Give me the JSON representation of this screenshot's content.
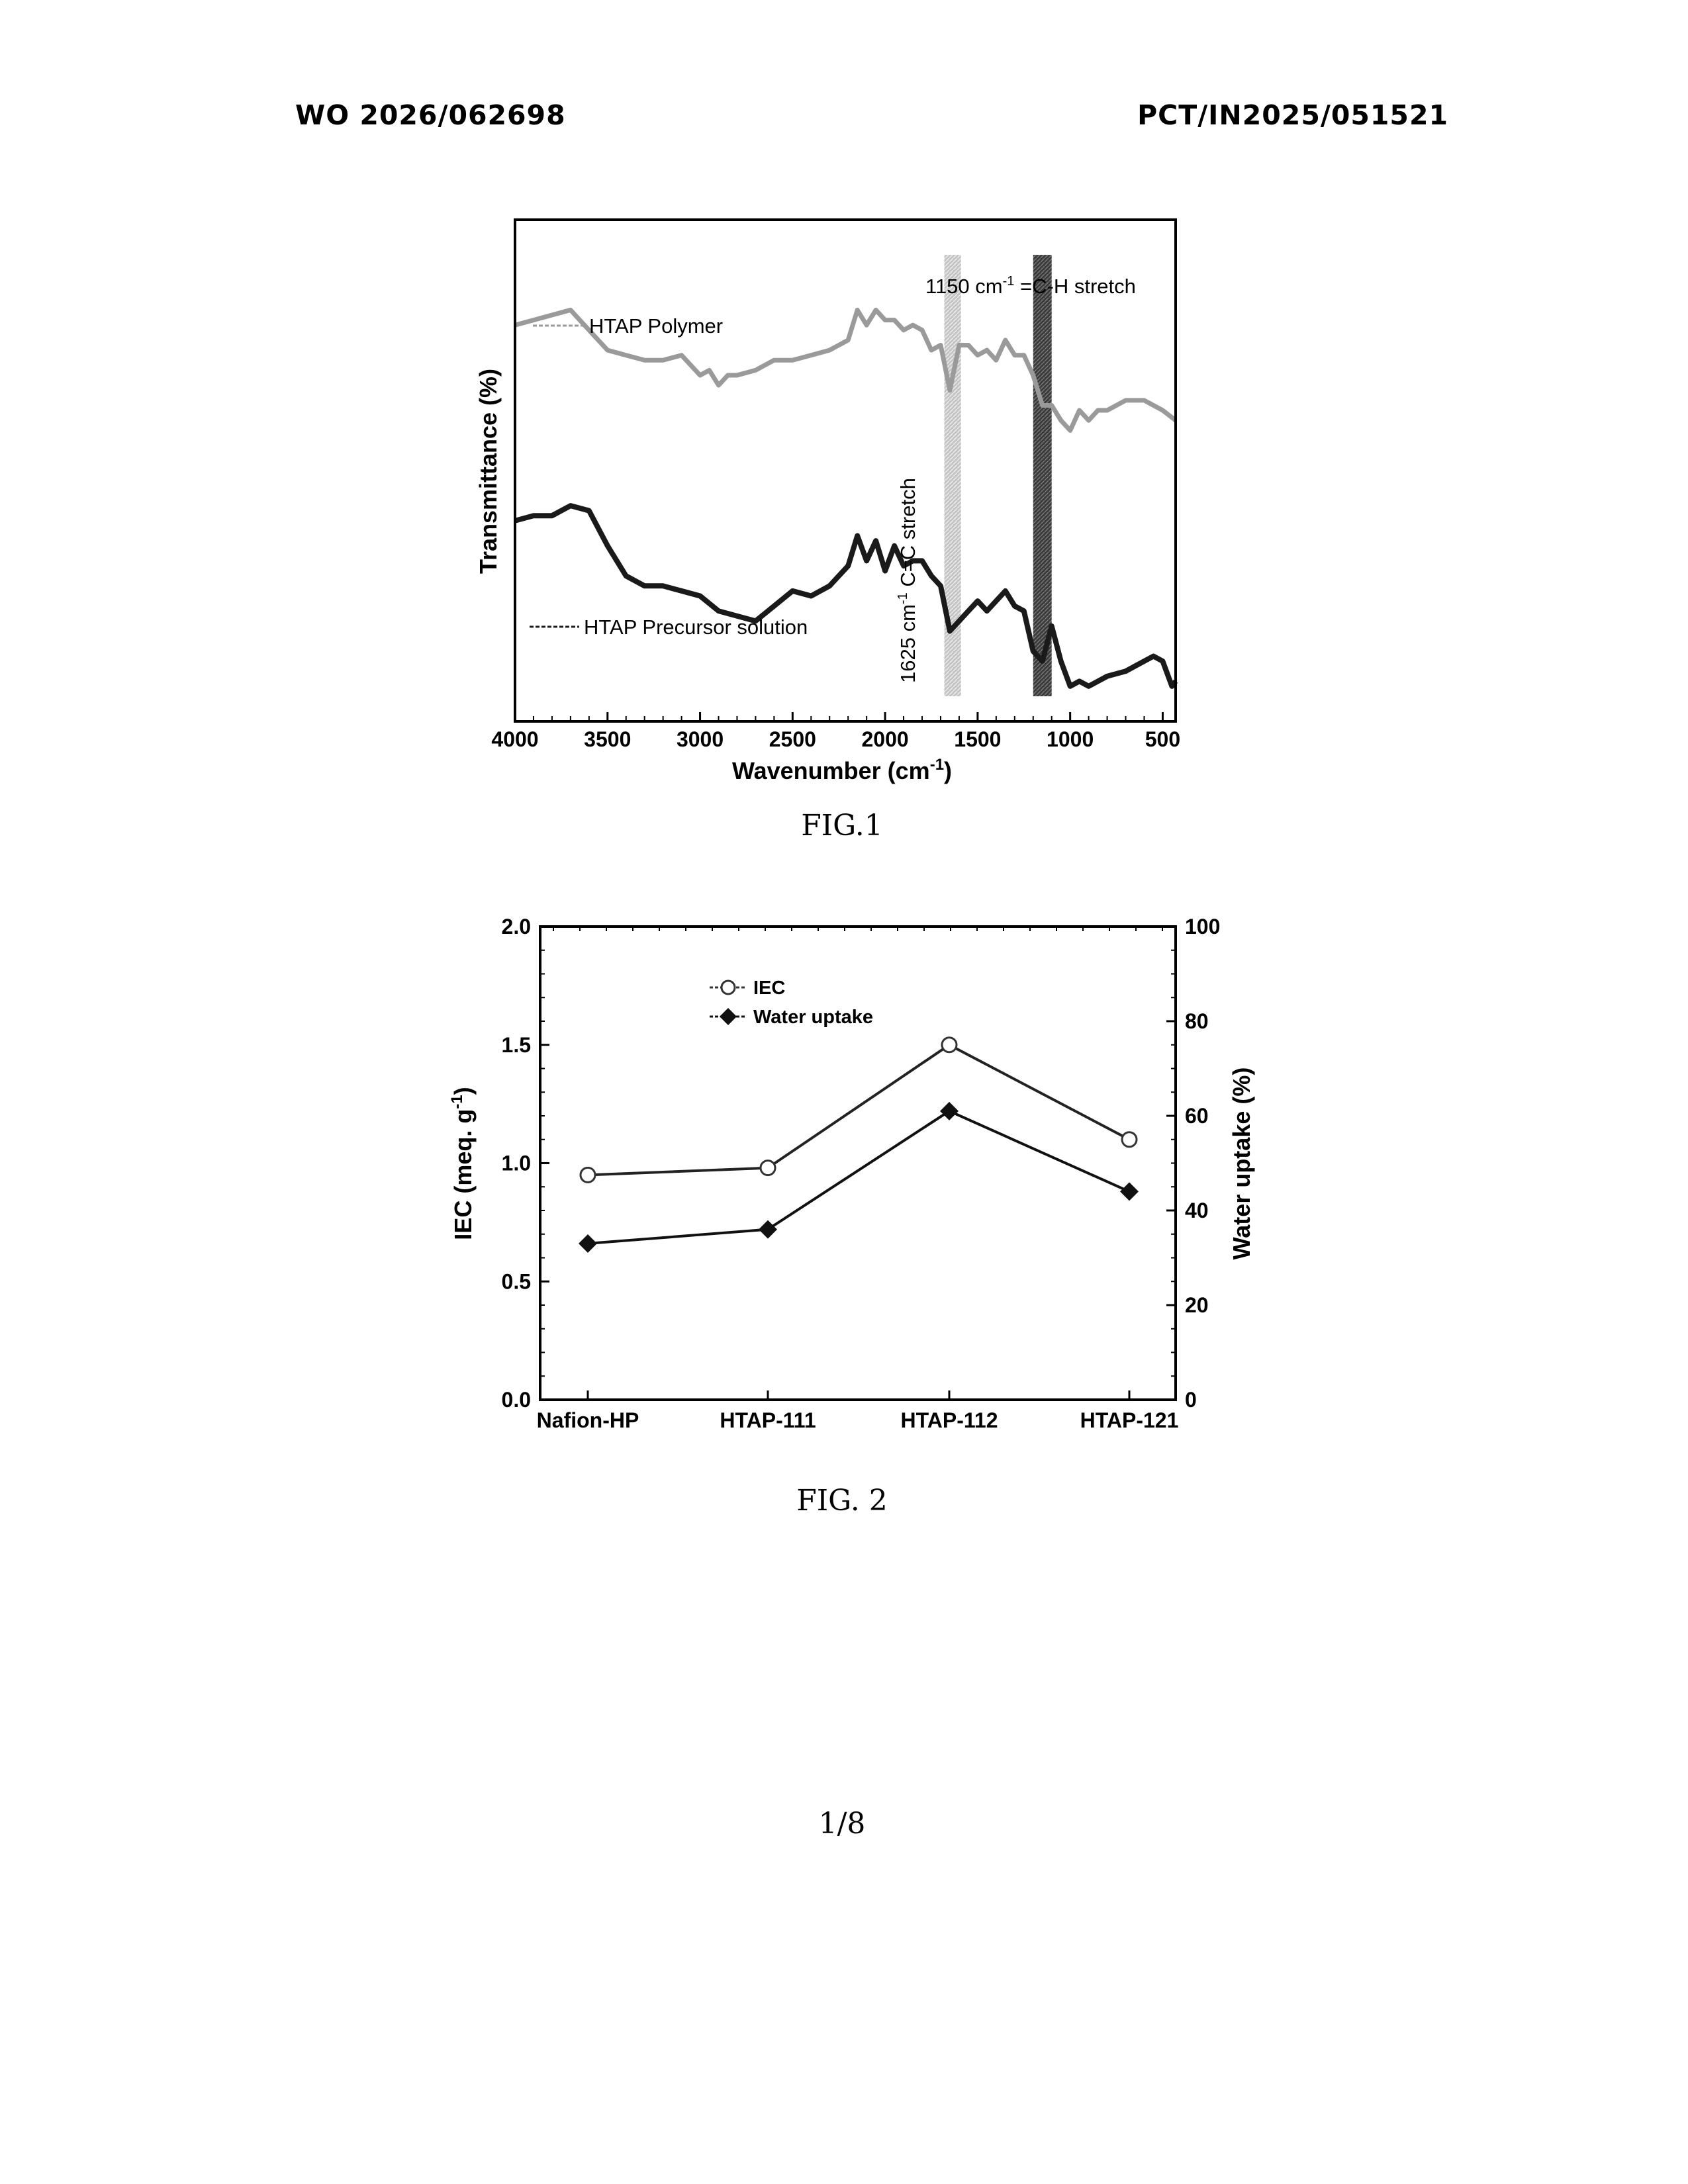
{
  "header": {
    "publication_number": "WO 2026/062698",
    "application_number": "PCT/IN2025/051521"
  },
  "figures": {
    "fig1_caption": "FIG.1",
    "fig2_caption": "FIG. 2"
  },
  "page_number": "1/8",
  "colors": {
    "polymer_line": "#9a9a9a",
    "precursor_line": "#1a1a1a",
    "band_1625": "#b8b8b8",
    "band_1150": "#404040"
  },
  "chart_data": [
    {
      "type": "line",
      "xlabel": "Wavenumber (cm",
      "xlabel_sup": "-1",
      "xlabel_end": ")",
      "ylabel": "Transmittance (%)",
      "xlim": [
        4000,
        430
      ],
      "x_reversed": true,
      "xticks": [
        4000,
        3500,
        3000,
        2500,
        2000,
        1500,
        1000,
        500
      ],
      "yticks_labeled": false,
      "series": [
        {
          "name": "HTAP Polymer",
          "x": [
            4000,
            3900,
            3800,
            3700,
            3600,
            3500,
            3400,
            3300,
            3200,
            3100,
            3000,
            2950,
            2900,
            2850,
            2800,
            2700,
            2600,
            2500,
            2400,
            2300,
            2200,
            2150,
            2100,
            2050,
            2000,
            1950,
            1900,
            1850,
            1800,
            1750,
            1700,
            1650,
            1600,
            1550,
            1500,
            1450,
            1400,
            1350,
            1300,
            1250,
            1200,
            1150,
            1100,
            1050,
            1000,
            950,
            900,
            850,
            800,
            700,
            600,
            500,
            430
          ],
          "y": [
            79,
            80,
            81,
            82,
            78,
            74,
            73,
            72,
            72,
            73,
            69,
            70,
            67,
            69,
            69,
            70,
            72,
            72,
            73,
            74,
            76,
            82,
            79,
            82,
            80,
            80,
            78,
            79,
            78,
            74,
            75,
            66,
            75,
            75,
            73,
            74,
            72,
            76,
            73,
            73,
            69,
            63,
            63,
            60,
            58,
            62,
            60,
            62,
            62,
            64,
            64,
            62,
            60
          ]
        },
        {
          "name": "HTAP Precursor solution",
          "x": [
            4000,
            3900,
            3800,
            3700,
            3600,
            3500,
            3400,
            3300,
            3200,
            3100,
            3000,
            2900,
            2800,
            2700,
            2600,
            2500,
            2400,
            2300,
            2200,
            2150,
            2100,
            2050,
            2000,
            1950,
            1900,
            1850,
            1800,
            1750,
            1700,
            1650,
            1600,
            1550,
            1500,
            1450,
            1400,
            1350,
            1300,
            1250,
            1200,
            1150,
            1100,
            1050,
            1000,
            950,
            900,
            850,
            800,
            700,
            600,
            550,
            500,
            450,
            430
          ],
          "y": [
            40,
            41,
            41,
            43,
            42,
            35,
            29,
            27,
            27,
            26,
            25,
            22,
            21,
            20,
            23,
            26,
            25,
            27,
            31,
            37,
            32,
            36,
            30,
            35,
            31,
            32,
            32,
            29,
            27,
            18,
            20,
            22,
            24,
            22,
            24,
            26,
            23,
            22,
            14,
            12,
            19,
            12,
            7,
            8,
            7,
            8,
            9,
            10,
            12,
            13,
            12,
            7,
            8
          ]
        }
      ],
      "annotations": [
        {
          "text_main": "1150 cm",
          "text_sup": "-1",
          "text_rest": " =C-H stretch",
          "x": 1150,
          "color": "#404040"
        },
        {
          "text_main": "1625 cm",
          "text_sup": "-1",
          "text_rest": " C=C stretch",
          "x": 1625,
          "color": "#b8b8b8"
        }
      ],
      "band_xranges": [
        [
          1680,
          1590
        ],
        [
          1200,
          1100
        ]
      ]
    },
    {
      "type": "line",
      "categories": [
        "Nafion-HP",
        "HTAP-111",
        "HTAP-112",
        "HTAP-121"
      ],
      "ylabel_main": "IEC (meq. g",
      "ylabel_sup": "-1",
      "ylabel_end": ")",
      "y2label": "Water uptake (%)",
      "ylim": [
        0.0,
        2.0
      ],
      "yticks": [
        "0.0",
        "0.5",
        "1.0",
        "1.5",
        "2.0"
      ],
      "y2lim": [
        0,
        100
      ],
      "y2ticks": [
        "0",
        "20",
        "40",
        "60",
        "80",
        "100"
      ],
      "legend_position": "top-left",
      "series": [
        {
          "name": "IEC",
          "axis": "left",
          "marker": "open-circle",
          "values": [
            0.95,
            0.98,
            1.5,
            1.1
          ]
        },
        {
          "name": "Water uptake",
          "axis": "right",
          "marker": "filled-diamond",
          "values": [
            33,
            36,
            61,
            44
          ]
        }
      ]
    }
  ]
}
